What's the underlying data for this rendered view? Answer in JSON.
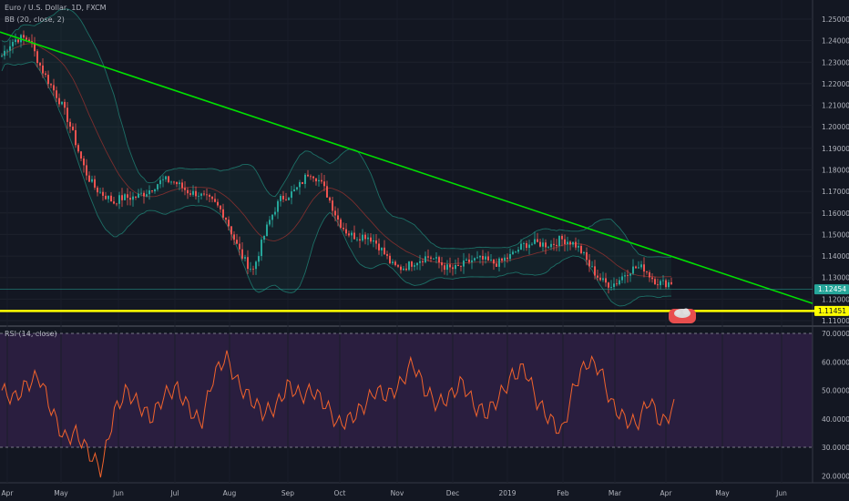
{
  "header": {
    "symbol_title": "Euro / U.S. Dollar, 1D, FXCM",
    "bb_label": "BB (20, close, 2)",
    "rsi_label": "RSI (14, close)"
  },
  "price_label": "1.12454",
  "marker_label": "1.11451",
  "colors": {
    "background": "#131722",
    "up": "#26a69a",
    "down": "#ef5350",
    "trendline": "#00e000",
    "support": "#ffff00",
    "bb_band": "#1d6f66",
    "bb_basis": "#7a2e2e",
    "rsi_line": "#f2632c",
    "rsi_fill": "#2a1e3f",
    "axis_text": "#b2b5be"
  },
  "chart_data": [
    {
      "type": "candlestick",
      "symbol": "EURUSD",
      "timeframe": "1D",
      "source": "FXCM",
      "overlay": "Bollinger Bands (20, close, 2)",
      "y_ticks": [
        "1.25000",
        "1.24000",
        "1.23000",
        "1.22000",
        "1.21000",
        "1.20000",
        "1.19000",
        "1.18000",
        "1.17000",
        "1.16000",
        "1.15000",
        "1.14000",
        "1.13000",
        "1.12000",
        "1.11000"
      ],
      "ylim": [
        1.107,
        1.254
      ],
      "x_ticks": [
        "Apr",
        "May",
        "Jun",
        "Jul",
        "Aug",
        "Sep",
        "Oct",
        "Nov",
        "Dec",
        "2019",
        "Feb",
        "Mar",
        "Apr",
        "May",
        "Jun"
      ],
      "last_price": 1.12454,
      "trendline": {
        "from": [
          "2018-04-01",
          1.244
        ],
        "to": [
          "2019-06-30",
          1.118
        ]
      },
      "horizontal_line": 1.1145,
      "closes_approx": [
        {
          "x": "Apr",
          "y": 1.232
        },
        {
          "x": "Apr-mid",
          "y": 1.238
        },
        {
          "x": "May",
          "y": 1.21
        },
        {
          "x": "May-mid",
          "y": 1.185
        },
        {
          "x": "Jun",
          "y": 1.165
        },
        {
          "x": "Jun-mid",
          "y": 1.17
        },
        {
          "x": "Jul",
          "y": 1.168
        },
        {
          "x": "Jul-mid",
          "y": 1.172
        },
        {
          "x": "Aug",
          "y": 1.16
        },
        {
          "x": "Aug-mid",
          "y": 1.137
        },
        {
          "x": "Sep",
          "y": 1.163
        },
        {
          "x": "Sep-mid",
          "y": 1.176
        },
        {
          "x": "Oct",
          "y": 1.16
        },
        {
          "x": "Oct-mid",
          "y": 1.152
        },
        {
          "x": "Nov",
          "y": 1.138
        },
        {
          "x": "Nov-mid",
          "y": 1.132
        },
        {
          "x": "Dec",
          "y": 1.135
        },
        {
          "x": "Dec-mid",
          "y": 1.138
        },
        {
          "x": "2019",
          "y": 1.145
        },
        {
          "x": "Jan-mid",
          "y": 1.142
        },
        {
          "x": "Feb",
          "y": 1.146
        },
        {
          "x": "Feb-mid",
          "y": 1.134
        },
        {
          "x": "Mar",
          "y": 1.132
        },
        {
          "x": "Mar-mid",
          "y": 1.137
        },
        {
          "x": "Apr",
          "y": 1.1245
        }
      ]
    },
    {
      "type": "line",
      "indicator": "RSI (14, close)",
      "y_ticks": [
        "70.0000",
        "60.0000",
        "50.0000",
        "40.0000",
        "30.0000",
        "20.0000"
      ],
      "ylim": [
        17,
        74
      ],
      "levels": [
        70,
        30
      ],
      "x_ticks": [
        "Apr",
        "May",
        "Jun",
        "Jul",
        "Aug",
        "Sep",
        "Oct",
        "Nov",
        "Dec",
        "2019",
        "Feb",
        "Mar",
        "Apr",
        "May",
        "Jun"
      ],
      "values": [
        50,
        47,
        52,
        55,
        43,
        33,
        35,
        28,
        22,
        42,
        50,
        45,
        40,
        48,
        51,
        44,
        38,
        55,
        62,
        52,
        47,
        42,
        44,
        52,
        48,
        50,
        45,
        38,
        40,
        44,
        50,
        48,
        52,
        60,
        50,
        45,
        48,
        53,
        44,
        42,
        48,
        55,
        58,
        46,
        40,
        35,
        52,
        60,
        58,
        45,
        40,
        38,
        47,
        38,
        44
      ]
    }
  ]
}
